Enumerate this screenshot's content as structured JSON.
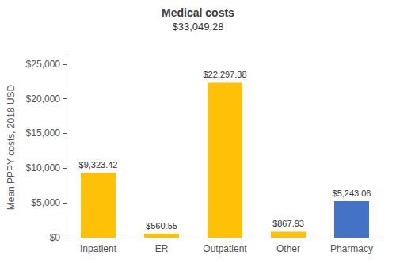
{
  "chart_data": {
    "type": "bar",
    "title": "Medical costs",
    "subtitle": "$33,049.28",
    "categories": [
      "Inpatient",
      "ER",
      "Outpatient",
      "Other",
      "Pharmacy"
    ],
    "values": [
      9323.42,
      560.55,
      22297.38,
      867.93,
      5243.06
    ],
    "value_labels": [
      "$9,323.42",
      "$560.55",
      "$22,297.38",
      "$867.93",
      "$5,243.06"
    ],
    "data_labels": true,
    "colors": [
      "#FFC107",
      "#FFC107",
      "#FFC107",
      "#FFC107",
      "#4472C4"
    ],
    "ylabel": "Mean PPPY costs, 2018 USD",
    "ylim": [
      0,
      26000
    ],
    "yticks": [
      {
        "value": 0,
        "label": "$0"
      },
      {
        "value": 5000,
        "label": "$5,000"
      },
      {
        "value": 10000,
        "label": "$10,000"
      },
      {
        "value": 15000,
        "label": "$15,000"
      },
      {
        "value": 20000,
        "label": "$20,000"
      },
      {
        "value": 25000,
        "label": "$25,000"
      }
    ],
    "grid": false
  }
}
